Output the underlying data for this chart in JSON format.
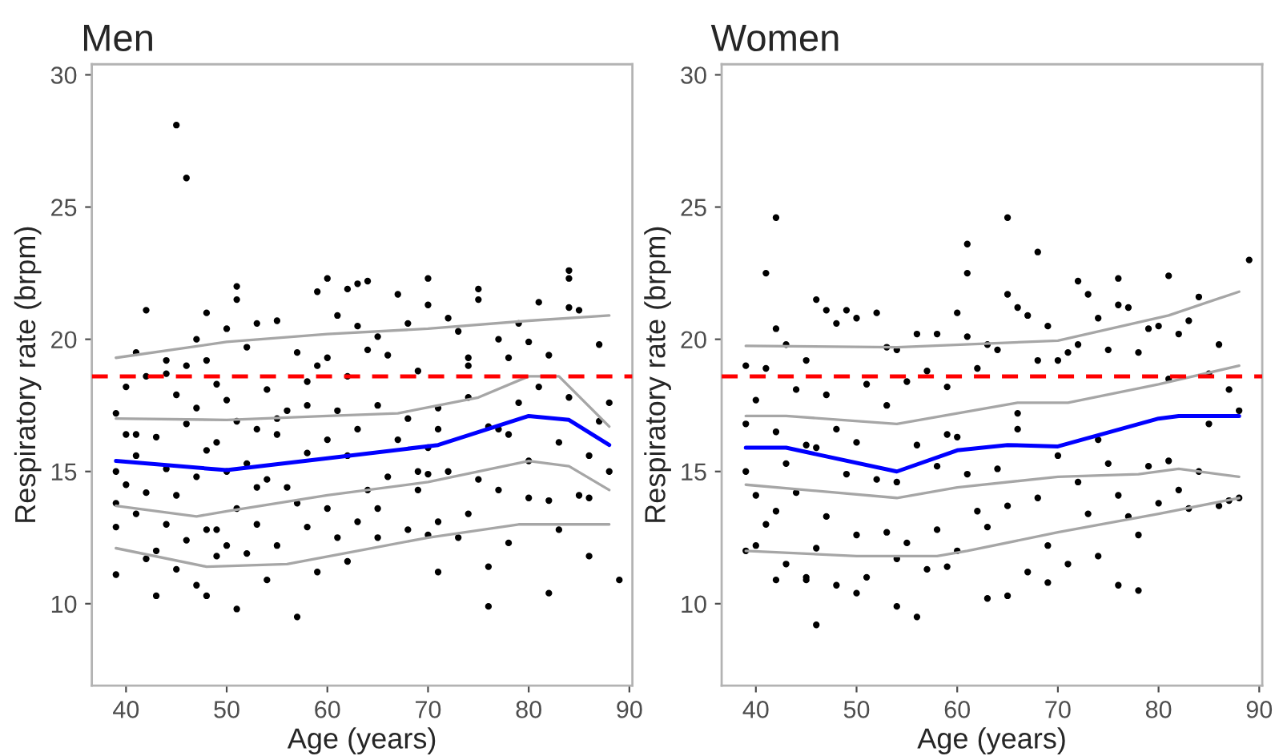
{
  "chart_data": [
    {
      "type": "scatter",
      "title": "Men",
      "xlabel": "Age (years)",
      "ylabel": "Respiratory rate (brpm)",
      "xlim": [
        36.6,
        90.3
      ],
      "ylim": [
        6.9,
        30.4
      ],
      "xticks": [
        40,
        50,
        60,
        70,
        80,
        90
      ],
      "yticks": [
        10,
        15,
        20,
        25,
        30
      ],
      "grid": false,
      "legend": false,
      "ref_lines": [
        {
          "axis": "y",
          "value": 18.6,
          "color": "#ff0000",
          "line_style": "dashed"
        }
      ],
      "series": [
        {
          "marker": "circle",
          "color": "#000000",
          "x": [
            45,
            46,
            39,
            43,
            51,
            57,
            76,
            82,
            84,
            84,
            60,
            70,
            64,
            63,
            62,
            59,
            51,
            51,
            75,
            42,
            48,
            89,
            39,
            39,
            39,
            39,
            40,
            40,
            40,
            41,
            41,
            41,
            42,
            42,
            42,
            43,
            43,
            44,
            44,
            44,
            45,
            45,
            45,
            46,
            46,
            46,
            47,
            47,
            47,
            47,
            48,
            48,
            48,
            48,
            49,
            49,
            49,
            50,
            50,
            50,
            50,
            51,
            51,
            52,
            52,
            52,
            53,
            53,
            53,
            54,
            54,
            54,
            55,
            55,
            55,
            56,
            56,
            57,
            57,
            58,
            58,
            58,
            59,
            59,
            60,
            60,
            60,
            61,
            61,
            61,
            62,
            62,
            62,
            63,
            63,
            63,
            64,
            64,
            65,
            65,
            65,
            66,
            66,
            67,
            67,
            68,
            68,
            68,
            69,
            69,
            70,
            70,
            70,
            71,
            71,
            71,
            72,
            72,
            73,
            73,
            74,
            74,
            74,
            75,
            75,
            76,
            76,
            77,
            77,
            78,
            78,
            78,
            79,
            79,
            80,
            80,
            80,
            81,
            81,
            82,
            82,
            83,
            83,
            84,
            84,
            85,
            85,
            86,
            86,
            87,
            87,
            88,
            88,
            70,
            74,
            71,
            49,
            55,
            86,
            77,
            69,
            58,
            53,
            44,
            41,
            65
          ],
          "values": [
            28.1,
            26.1,
            11.1,
            10.3,
            9.8,
            9.5,
            9.9,
            10.4,
            22.6,
            22.3,
            22.3,
            22.3,
            22.2,
            22.1,
            21.9,
            21.8,
            22.0,
            21.5,
            21.9,
            21.1,
            21.0,
            10.9,
            17.2,
            15.0,
            13.8,
            12.9,
            18.2,
            16.4,
            14.5,
            19.5,
            15.6,
            13.4,
            18.6,
            14.2,
            11.7,
            16.3,
            12.0,
            19.2,
            15.1,
            13.0,
            17.9,
            14.1,
            11.3,
            19.0,
            16.8,
            12.4,
            20.0,
            17.4,
            14.8,
            10.7,
            19.2,
            15.8,
            12.8,
            10.3,
            18.3,
            16.1,
            11.8,
            20.4,
            17.7,
            15.0,
            12.2,
            16.9,
            13.6,
            19.7,
            15.3,
            11.9,
            20.6,
            16.6,
            13.0,
            18.1,
            14.7,
            10.9,
            20.7,
            16.4,
            12.2,
            17.3,
            14.4,
            19.5,
            13.8,
            18.4,
            15.7,
            12.9,
            19.0,
            11.2,
            19.3,
            16.2,
            13.6,
            20.9,
            17.3,
            12.5,
            18.6,
            15.6,
            11.6,
            20.5,
            16.6,
            13.1,
            19.6,
            14.3,
            20.1,
            17.5,
            12.5,
            19.4,
            14.8,
            21.7,
            16.2,
            12.8,
            20.6,
            17.0,
            14.3,
            18.8,
            15.9,
            12.6,
            21.3,
            16.6,
            13.1,
            11.2,
            20.8,
            15.0,
            12.5,
            20.3,
            17.8,
            13.4,
            19.0,
            14.7,
            21.5,
            16.7,
            11.4,
            20.0,
            14.3,
            19.3,
            16.4,
            12.3,
            20.6,
            17.6,
            14.0,
            19.9,
            15.4,
            21.4,
            18.2,
            13.9,
            19.4,
            16.1,
            12.8,
            21.2,
            17.8,
            14.1,
            21.1,
            15.6,
            11.8,
            19.8,
            16.9,
            15.0,
            17.6,
            14.9,
            19.3,
            17.4,
            12.8,
            17.0,
            14.0,
            16.6,
            15.0,
            17.5,
            14.4,
            18.7,
            16.4,
            13.6
          ]
        },
        {
          "type": "line",
          "color": "#0000ff",
          "x": [
            39,
            50,
            60,
            71,
            80,
            84,
            88
          ],
          "values": [
            15.4,
            15.05,
            15.5,
            16.0,
            17.1,
            16.95,
            16.0
          ]
        },
        {
          "type": "line",
          "color": "#a6a6a6",
          "x": [
            39,
            50,
            60,
            70,
            80,
            88
          ],
          "values": [
            19.3,
            19.9,
            20.2,
            20.4,
            20.7,
            20.9
          ]
        },
        {
          "type": "line",
          "color": "#a6a6a6",
          "x": [
            39,
            50,
            60,
            67,
            75,
            80,
            83,
            88
          ],
          "values": [
            17.0,
            16.95,
            17.1,
            17.2,
            17.8,
            18.6,
            18.6,
            16.7
          ]
        },
        {
          "type": "line",
          "color": "#a6a6a6",
          "x": [
            39,
            47,
            50,
            60,
            70,
            80,
            84,
            88
          ],
          "values": [
            13.7,
            13.3,
            13.5,
            14.1,
            14.6,
            15.4,
            15.2,
            14.3
          ]
        },
        {
          "type": "line",
          "color": "#a6a6a6",
          "x": [
            39,
            48,
            56,
            63,
            70,
            79,
            88
          ],
          "values": [
            12.1,
            11.4,
            11.5,
            12.0,
            12.5,
            13.0,
            13.0
          ]
        }
      ]
    },
    {
      "type": "scatter",
      "title": "Women",
      "xlabel": "Age (years)",
      "ylabel": "Respiratory rate (brpm)",
      "xlim": [
        36.6,
        90.3
      ],
      "ylim": [
        6.9,
        30.4
      ],
      "xticks": [
        40,
        50,
        60,
        70,
        80,
        90
      ],
      "yticks": [
        10,
        15,
        20,
        25,
        30
      ],
      "grid": false,
      "legend": false,
      "ref_lines": [
        {
          "axis": "y",
          "value": 18.6,
          "color": "#ff0000",
          "line_style": "dashed"
        }
      ],
      "series": [
        {
          "marker": "circle",
          "color": "#000000",
          "x": [
            42,
            65,
            61,
            68,
            89,
            41,
            61,
            72,
            76,
            81,
            46,
            54,
            56,
            63,
            65,
            76,
            78,
            69,
            42,
            45,
            50,
            39,
            39,
            39,
            39,
            40,
            40,
            40,
            41,
            41,
            42,
            42,
            42,
            43,
            43,
            43,
            44,
            44,
            45,
            45,
            45,
            46,
            46,
            46,
            47,
            47,
            48,
            48,
            48,
            49,
            49,
            50,
            50,
            50,
            51,
            51,
            52,
            52,
            53,
            53,
            54,
            54,
            54,
            55,
            55,
            56,
            56,
            57,
            57,
            58,
            58,
            58,
            59,
            59,
            60,
            60,
            60,
            61,
            61,
            62,
            62,
            63,
            63,
            64,
            64,
            65,
            65,
            66,
            66,
            67,
            67,
            68,
            68,
            69,
            69,
            70,
            70,
            71,
            71,
            72,
            72,
            73,
            73,
            74,
            74,
            75,
            75,
            76,
            76,
            77,
            77,
            78,
            78,
            79,
            79,
            80,
            80,
            81,
            81,
            82,
            82,
            83,
            83,
            84,
            84,
            85,
            85,
            86,
            86,
            87,
            87,
            88,
            88,
            47,
            53,
            59,
            66,
            74
          ],
          "values": [
            24.6,
            24.6,
            23.6,
            23.3,
            23.0,
            22.5,
            22.5,
            22.2,
            22.3,
            22.4,
            9.2,
            9.9,
            9.5,
            10.2,
            10.3,
            10.7,
            10.5,
            10.8,
            10.9,
            10.9,
            10.4,
            19.0,
            16.8,
            15.0,
            12.0,
            17.7,
            14.1,
            12.2,
            18.9,
            13.0,
            20.4,
            16.5,
            13.5,
            19.8,
            15.3,
            11.5,
            18.1,
            14.2,
            19.2,
            16.0,
            11.0,
            21.5,
            15.9,
            12.1,
            21.1,
            13.3,
            20.6,
            16.6,
            10.7,
            21.1,
            14.9,
            20.8,
            16.1,
            12.6,
            18.3,
            11.0,
            21.0,
            14.7,
            19.7,
            12.7,
            19.6,
            14.6,
            11.7,
            18.4,
            12.3,
            20.2,
            16.0,
            18.8,
            11.3,
            20.2,
            15.2,
            12.8,
            18.2,
            11.4,
            21.0,
            16.3,
            12.0,
            20.1,
            14.9,
            18.9,
            13.5,
            19.8,
            12.9,
            19.6,
            15.1,
            21.7,
            13.7,
            21.2,
            16.6,
            20.9,
            11.2,
            19.2,
            14.0,
            20.5,
            12.2,
            19.2,
            15.6,
            19.5,
            11.5,
            19.8,
            14.6,
            21.7,
            13.4,
            20.8,
            11.8,
            19.6,
            15.3,
            21.3,
            14.1,
            21.2,
            13.3,
            19.5,
            12.6,
            20.4,
            15.2,
            20.5,
            13.8,
            18.5,
            15.4,
            20.2,
            14.3,
            20.7,
            13.6,
            21.6,
            15.0,
            18.7,
            16.8,
            19.8,
            13.7,
            18.1,
            13.9,
            17.3,
            14.0,
            17.9,
            17.5,
            16.4,
            17.2,
            16.2
          ]
        },
        {
          "type": "line",
          "color": "#0000ff",
          "x": [
            39,
            43,
            54,
            60,
            65,
            70,
            80,
            82,
            88
          ],
          "values": [
            15.9,
            15.9,
            15.0,
            15.8,
            16.0,
            15.95,
            17.0,
            17.1,
            17.1
          ]
        },
        {
          "type": "line",
          "color": "#a6a6a6",
          "x": [
            39,
            54,
            70,
            81,
            88
          ],
          "values": [
            19.75,
            19.7,
            19.95,
            20.9,
            21.8
          ]
        },
        {
          "type": "line",
          "color": "#a6a6a6",
          "x": [
            39,
            43,
            54,
            66,
            71,
            80,
            88
          ],
          "values": [
            17.1,
            17.1,
            16.8,
            17.6,
            17.6,
            18.3,
            19.0
          ]
        },
        {
          "type": "line",
          "color": "#a6a6a6",
          "x": [
            39,
            54,
            60,
            70,
            78,
            82,
            88
          ],
          "values": [
            14.5,
            14.0,
            14.4,
            14.8,
            14.9,
            15.1,
            14.8
          ]
        },
        {
          "type": "line",
          "color": "#a6a6a6",
          "x": [
            39,
            50,
            58,
            61,
            70,
            80,
            88
          ],
          "values": [
            12.0,
            11.8,
            11.8,
            12.0,
            12.7,
            13.4,
            14.0
          ]
        }
      ]
    }
  ]
}
